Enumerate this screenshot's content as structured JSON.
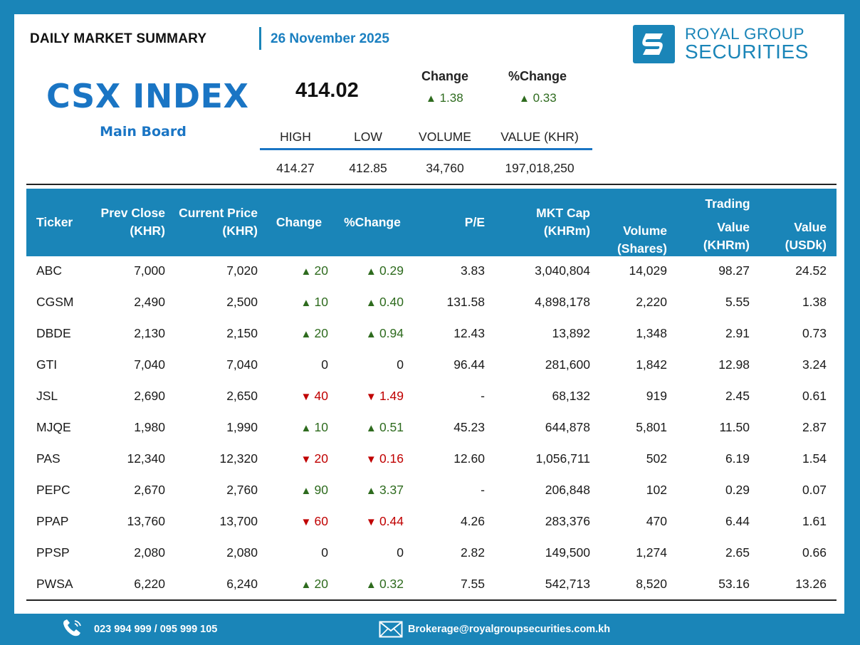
{
  "header": {
    "report_title": "DAILY MARKET SUMMARY",
    "date": "26 November 2025",
    "logo_line1": "ROYAL GROUP",
    "logo_line2": "SECURITIES"
  },
  "index": {
    "name": "CSX INDEX",
    "board": "Main Board",
    "value": "414.02",
    "change_label": "Change",
    "pct_change_label": "%Change",
    "change": "1.38",
    "pct_change": "0.33",
    "change_direction": "up"
  },
  "stats": {
    "headers": [
      "HIGH",
      "LOW",
      "VOLUME",
      "VALUE (KHR)"
    ],
    "values": [
      "414.27",
      "412.85",
      "34,760",
      "197,018,250"
    ]
  },
  "table": {
    "headers": {
      "ticker": "Ticker",
      "prev_close_1": "Prev Close",
      "prev_close_2": "(KHR)",
      "current_1": "Current Price",
      "current_2": "(KHR)",
      "change": "Change",
      "pct_change": "%Change",
      "pe": "P/E",
      "mktcap_1": "MKT Cap",
      "mktcap_2": "(KHRm)",
      "volume_1": "Volume",
      "volume_2": "(Shares)",
      "trading": "Trading",
      "value_khr_1": "Value",
      "value_khr_2": "(KHRm)",
      "value_usd_1": "Value",
      "value_usd_2": "(USDk)"
    },
    "rows": [
      {
        "ticker": "ABC",
        "prev": "7,000",
        "current": "7,020",
        "dir": "up",
        "change": "20",
        "pct": "0.29",
        "pe": "3.83",
        "mktcap": "3,040,804",
        "volume": "14,029",
        "value_khr": "98.27",
        "value_usd": "24.52"
      },
      {
        "ticker": "CGSM",
        "prev": "2,490",
        "current": "2,500",
        "dir": "up",
        "change": "10",
        "pct": "0.40",
        "pe": "131.58",
        "mktcap": "4,898,178",
        "volume": "2,220",
        "value_khr": "5.55",
        "value_usd": "1.38"
      },
      {
        "ticker": "DBDE",
        "prev": "2,130",
        "current": "2,150",
        "dir": "up",
        "change": "20",
        "pct": "0.94",
        "pe": "12.43",
        "mktcap": "13,892",
        "volume": "1,348",
        "value_khr": "2.91",
        "value_usd": "0.73"
      },
      {
        "ticker": "GTI",
        "prev": "7,040",
        "current": "7,040",
        "dir": "none",
        "change": "0",
        "pct": "0",
        "pe": "96.44",
        "mktcap": "281,600",
        "volume": "1,842",
        "value_khr": "12.98",
        "value_usd": "3.24"
      },
      {
        "ticker": "JSL",
        "prev": "2,690",
        "current": "2,650",
        "dir": "down",
        "change": "40",
        "pct": "1.49",
        "pe": "-",
        "mktcap": "68,132",
        "volume": "919",
        "value_khr": "2.45",
        "value_usd": "0.61"
      },
      {
        "ticker": "MJQE",
        "prev": "1,980",
        "current": "1,990",
        "dir": "up",
        "change": "10",
        "pct": "0.51",
        "pe": "45.23",
        "mktcap": "644,878",
        "volume": "5,801",
        "value_khr": "11.50",
        "value_usd": "2.87"
      },
      {
        "ticker": "PAS",
        "prev": "12,340",
        "current": "12,320",
        "dir": "down",
        "change": "20",
        "pct": "0.16",
        "pe": "12.60",
        "mktcap": "1,056,711",
        "volume": "502",
        "value_khr": "6.19",
        "value_usd": "1.54"
      },
      {
        "ticker": "PEPC",
        "prev": "2,670",
        "current": "2,760",
        "dir": "up",
        "change": "90",
        "pct": "3.37",
        "pe": "-",
        "mktcap": "206,848",
        "volume": "102",
        "value_khr": "0.29",
        "value_usd": "0.07"
      },
      {
        "ticker": "PPAP",
        "prev": "13,760",
        "current": "13,700",
        "dir": "down",
        "change": "60",
        "pct": "0.44",
        "pe": "4.26",
        "mktcap": "283,376",
        "volume": "470",
        "value_khr": "6.44",
        "value_usd": "1.61"
      },
      {
        "ticker": "PPSP",
        "prev": "2,080",
        "current": "2,080",
        "dir": "none",
        "change": "0",
        "pct": "0",
        "pe": "2.82",
        "mktcap": "149,500",
        "volume": "1,274",
        "value_khr": "2.65",
        "value_usd": "0.66"
      },
      {
        "ticker": "PWSA",
        "prev": "6,220",
        "current": "6,240",
        "dir": "up",
        "change": "20",
        "pct": "0.32",
        "pe": "7.55",
        "mktcap": "542,713",
        "volume": "8,520",
        "value_khr": "53.16",
        "value_usd": "13.26"
      }
    ]
  },
  "footer": {
    "phone": "023 994 999 / 095 999 105",
    "email": "Brokerage@royalgroupsecurities.com.kh"
  },
  "colors": {
    "brand_blue": "#1a85b8",
    "index_blue": "#1a75c4",
    "up_green": "#2e6b1e",
    "down_red": "#c00000"
  },
  "icons": {
    "up": "up-triangle-icon",
    "down": "down-triangle-icon",
    "phone": "phone-icon",
    "email": "envelope-icon"
  }
}
